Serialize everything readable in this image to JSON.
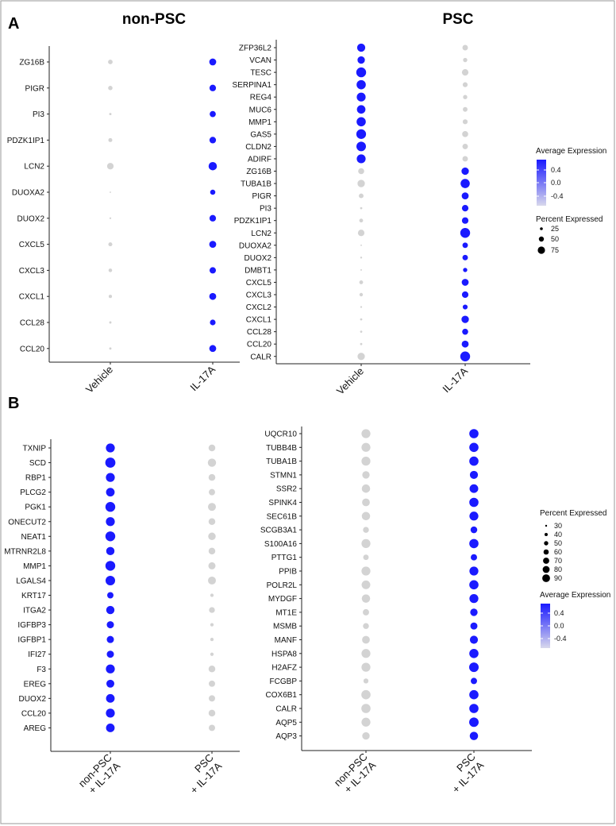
{
  "figure": {
    "panel_a_letter": "A",
    "panel_b_letter": "B",
    "panel_a_left_title": "non-PSC",
    "panel_a_right_title": "PSC",
    "legend_top_color_title": "Average Expression",
    "legend_top_size_title": "Percent Expressed",
    "legend_bottom_size_title": "Percent Expressed",
    "legend_bottom_color_title": "Average Expression",
    "colors": {
      "low": "#d3d3d3",
      "high": "#1a1aff"
    }
  },
  "chart_data": [
    {
      "id": "A-nonPSC",
      "type": "dotplot",
      "title": "non-PSC",
      "categories": [
        "Vehicle",
        "IL-17A"
      ],
      "genes": [
        "ZG16B",
        "PIGR",
        "PI3",
        "PDZK1IP1",
        "LCN2",
        "DUOXA2",
        "DUOX2",
        "CXCL5",
        "CXCL3",
        "CXCL1",
        "CCL28",
        "CCL20"
      ],
      "pct": [
        [
          20,
          45
        ],
        [
          18,
          40
        ],
        [
          5,
          35
        ],
        [
          15,
          40
        ],
        [
          40,
          65
        ],
        [
          2,
          25
        ],
        [
          3,
          40
        ],
        [
          15,
          45
        ],
        [
          12,
          38
        ],
        [
          10,
          45
        ],
        [
          5,
          30
        ],
        [
          5,
          45
        ]
      ],
      "avg": [
        [
          -0.6,
          0.6
        ],
        [
          -0.6,
          0.6
        ],
        [
          -0.6,
          0.6
        ],
        [
          -0.6,
          0.6
        ],
        [
          -0.6,
          0.6
        ],
        [
          -0.6,
          0.6
        ],
        [
          -0.6,
          0.6
        ],
        [
          -0.6,
          0.6
        ],
        [
          -0.6,
          0.6
        ],
        [
          -0.6,
          0.6
        ],
        [
          -0.6,
          0.6
        ],
        [
          -0.6,
          0.6
        ]
      ]
    },
    {
      "id": "A-PSC",
      "type": "dotplot",
      "title": "PSC",
      "categories": [
        "Vehicle",
        "IL-17A"
      ],
      "genes": [
        "ZFP36L2",
        "VCAN",
        "TESC",
        "SERPINA1",
        "REG4",
        "MUC6",
        "MMP1",
        "GAS5",
        "CLDN2",
        "ADIRF",
        "ZG16B",
        "TUBA1B",
        "PIGR",
        "PI3",
        "PDZK1IP1",
        "LCN2",
        "DUOXA2",
        "DUOX2",
        "DMBT1",
        "CXCL5",
        "CXCL3",
        "CXCL2",
        "CXCL1",
        "CCL28",
        "CCL20",
        "CALR"
      ],
      "pct": [
        [
          55,
          25
        ],
        [
          45,
          15
        ],
        [
          80,
          35
        ],
        [
          70,
          20
        ],
        [
          65,
          15
        ],
        [
          60,
          18
        ],
        [
          70,
          20
        ],
        [
          78,
          30
        ],
        [
          75,
          25
        ],
        [
          65,
          25
        ],
        [
          30,
          45
        ],
        [
          45,
          70
        ],
        [
          18,
          40
        ],
        [
          4,
          35
        ],
        [
          12,
          35
        ],
        [
          35,
          80
        ],
        [
          2,
          25
        ],
        [
          3,
          25
        ],
        [
          2,
          15
        ],
        [
          12,
          40
        ],
        [
          10,
          35
        ],
        [
          3,
          20
        ],
        [
          4,
          45
        ],
        [
          4,
          30
        ],
        [
          4,
          40
        ],
        [
          45,
          80
        ]
      ],
      "avg": [
        [
          0.6,
          -0.6
        ],
        [
          0.6,
          -0.6
        ],
        [
          0.6,
          -0.6
        ],
        [
          0.6,
          -0.6
        ],
        [
          0.6,
          -0.6
        ],
        [
          0.6,
          -0.6
        ],
        [
          0.6,
          -0.6
        ],
        [
          0.6,
          -0.6
        ],
        [
          0.6,
          -0.6
        ],
        [
          0.6,
          -0.6
        ],
        [
          -0.6,
          0.6
        ],
        [
          -0.6,
          0.6
        ],
        [
          -0.6,
          0.6
        ],
        [
          -0.6,
          0.6
        ],
        [
          -0.6,
          0.6
        ],
        [
          -0.6,
          0.6
        ],
        [
          -0.6,
          0.6
        ],
        [
          -0.6,
          0.6
        ],
        [
          -0.6,
          0.6
        ],
        [
          -0.6,
          0.6
        ],
        [
          -0.6,
          0.6
        ],
        [
          -0.6,
          0.6
        ],
        [
          -0.6,
          0.6
        ],
        [
          -0.6,
          0.6
        ],
        [
          -0.6,
          0.6
        ],
        [
          -0.6,
          0.6
        ]
      ],
      "legend": {
        "color_title": "Average Expression",
        "color_ticks": [
          "0.4",
          "0.0",
          "-0.4"
        ],
        "size_title": "Percent Expressed",
        "size_ticks": [
          "25",
          "50",
          "75"
        ]
      }
    },
    {
      "id": "B-left",
      "type": "dotplot",
      "categories": [
        "non-PSC\n+ IL-17A",
        "PSC\n+ IL-17A"
      ],
      "genes": [
        "TXNIP",
        "SCD",
        "RBP1",
        "PLCG2",
        "PGK1",
        "ONECUT2",
        "NEAT1",
        "MTRNR2L8",
        "MMP1",
        "LGALS4",
        "KRT17",
        "ITGA2",
        "IGFBP3",
        "IGFBP1",
        "IFI27",
        "F3",
        "EREG",
        "DUOX2",
        "CCL20",
        "AREG"
      ],
      "pct": [
        [
          70,
          40
        ],
        [
          90,
          60
        ],
        [
          70,
          40
        ],
        [
          65,
          35
        ],
        [
          85,
          55
        ],
        [
          70,
          40
        ],
        [
          85,
          50
        ],
        [
          60,
          40
        ],
        [
          85,
          45
        ],
        [
          80,
          55
        ],
        [
          35,
          10
        ],
        [
          60,
          30
        ],
        [
          45,
          10
        ],
        [
          45,
          10
        ],
        [
          45,
          10
        ],
        [
          70,
          40
        ],
        [
          55,
          35
        ],
        [
          65,
          35
        ],
        [
          70,
          40
        ],
        [
          65,
          35
        ]
      ],
      "avg": [
        [
          0.6,
          -0.6
        ],
        [
          0.6,
          -0.6
        ],
        [
          0.6,
          -0.6
        ],
        [
          0.6,
          -0.6
        ],
        [
          0.6,
          -0.6
        ],
        [
          0.6,
          -0.6
        ],
        [
          0.6,
          -0.6
        ],
        [
          0.6,
          -0.6
        ],
        [
          0.6,
          -0.6
        ],
        [
          0.6,
          -0.6
        ],
        [
          0.6,
          -0.6
        ],
        [
          0.6,
          -0.6
        ],
        [
          0.6,
          -0.6
        ],
        [
          0.6,
          -0.6
        ],
        [
          0.6,
          -0.6
        ],
        [
          0.6,
          -0.6
        ],
        [
          0.6,
          -0.6
        ],
        [
          0.6,
          -0.6
        ],
        [
          0.6,
          -0.6
        ],
        [
          0.6,
          -0.6
        ]
      ]
    },
    {
      "id": "B-right",
      "type": "dotplot",
      "categories": [
        "non-PSC\n+ IL-17A",
        "PSC\n+ IL-17A"
      ],
      "genes": [
        "UQCR10",
        "TUBB4B",
        "TUBA1B",
        "STMN1",
        "SSR2",
        "SPINK4",
        "SEC61B",
        "SCGB3A1",
        "S100A16",
        "PTTG1",
        "PPIB",
        "POLR2L",
        "MYDGF",
        "MT1E",
        "MSMB",
        "MANF",
        "HSPA8",
        "H2AFZ",
        "FCGBP",
        "COX6B1",
        "CALR",
        "AQP5",
        "AQP3"
      ],
      "pct": [
        [
          80,
          85
        ],
        [
          80,
          85
        ],
        [
          80,
          85
        ],
        [
          55,
          65
        ],
        [
          70,
          75
        ],
        [
          60,
          85
        ],
        [
          70,
          80
        ],
        [
          35,
          45
        ],
        [
          80,
          85
        ],
        [
          30,
          40
        ],
        [
          80,
          80
        ],
        [
          75,
          85
        ],
        [
          70,
          80
        ],
        [
          40,
          55
        ],
        [
          35,
          50
        ],
        [
          60,
          65
        ],
        [
          80,
          85
        ],
        [
          80,
          90
        ],
        [
          25,
          40
        ],
        [
          85,
          85
        ],
        [
          85,
          85
        ],
        [
          80,
          90
        ],
        [
          55,
          70
        ]
      ],
      "avg": [
        [
          -0.6,
          0.6
        ],
        [
          -0.6,
          0.6
        ],
        [
          -0.6,
          0.6
        ],
        [
          -0.6,
          0.6
        ],
        [
          -0.6,
          0.6
        ],
        [
          -0.6,
          0.6
        ],
        [
          -0.6,
          0.6
        ],
        [
          -0.6,
          0.6
        ],
        [
          -0.6,
          0.6
        ],
        [
          -0.6,
          0.6
        ],
        [
          -0.6,
          0.6
        ],
        [
          -0.6,
          0.6
        ],
        [
          -0.6,
          0.6
        ],
        [
          -0.6,
          0.6
        ],
        [
          -0.6,
          0.6
        ],
        [
          -0.6,
          0.6
        ],
        [
          -0.6,
          0.6
        ],
        [
          -0.6,
          0.6
        ],
        [
          -0.6,
          0.6
        ],
        [
          -0.6,
          0.6
        ],
        [
          -0.6,
          0.6
        ],
        [
          -0.6,
          0.6
        ],
        [
          -0.6,
          0.6
        ]
      ],
      "legend": {
        "size_title": "Percent Expressed",
        "size_ticks": [
          "30",
          "40",
          "50",
          "60",
          "70",
          "80",
          "90"
        ],
        "color_title": "Average Expression",
        "color_ticks": [
          "0.4",
          "0.0",
          "-0.4"
        ]
      }
    }
  ]
}
